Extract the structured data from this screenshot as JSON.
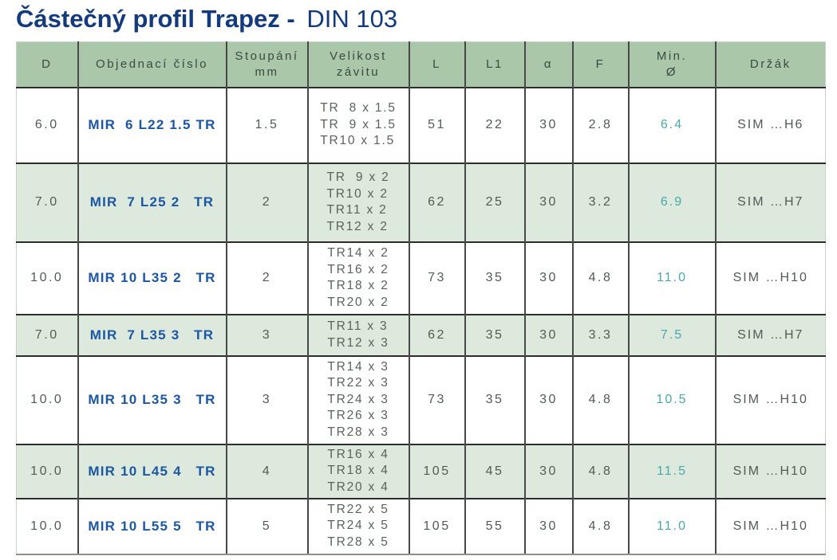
{
  "page": {
    "title_bold": "Částečný profil Trapez -",
    "title_light": "DIN 103"
  },
  "colors": {
    "title_navy": "#133a7d",
    "header_green": "#aac7aa",
    "shaded_row_green": "#dde9dd",
    "order_number_blue": "#1b57a4",
    "min_diameter_teal": "#49a8ad",
    "cell_text_gray": "#525b55",
    "grid_line_dark": "#2d2d2d"
  },
  "table": {
    "columns": [
      {
        "key": "d",
        "label": "D"
      },
      {
        "key": "order",
        "label": "Objednací číslo"
      },
      {
        "key": "pitch",
        "label": "Stoupání\nmm"
      },
      {
        "key": "thread",
        "label": "Velikost\nzávitu"
      },
      {
        "key": "l",
        "label": "L"
      },
      {
        "key": "l1",
        "label": "L1"
      },
      {
        "key": "alpha",
        "label": "α"
      },
      {
        "key": "f",
        "label": "F"
      },
      {
        "key": "min_dia",
        "label": "Min.\nØ"
      },
      {
        "key": "holder",
        "label": "Držák"
      }
    ],
    "rows": [
      {
        "d": "6.0",
        "order": "MIR  6 L22 1.5 TR",
        "pitch": "1.5",
        "thread": [
          "TR  8 x 1.5",
          "TR  9 x 1.5",
          "TR10 x 1.5"
        ],
        "l": "51",
        "l1": "22",
        "alpha": "30",
        "f": "2.8",
        "min_dia": "6.4",
        "holder": "SIM …H6",
        "shaded": false
      },
      {
        "d": "7.0",
        "order": "MIR  7 L25 2   TR",
        "pitch": "2",
        "thread": [
          "TR  9 x 2",
          "TR10 x 2",
          "TR11 x 2",
          "TR12 x 2"
        ],
        "l": "62",
        "l1": "25",
        "alpha": "30",
        "f": "3.2",
        "min_dia": "6.9",
        "holder": "SIM …H7",
        "shaded": true
      },
      {
        "d": "10.0",
        "order": "MIR 10 L35 2   TR",
        "pitch": "2",
        "thread": [
          "TR14 x 2",
          "TR16 x 2",
          "TR18 x 2",
          "TR20 x 2"
        ],
        "l": "73",
        "l1": "35",
        "alpha": "30",
        "f": "4.8",
        "min_dia": "11.0",
        "holder": "SIM …H10",
        "shaded": false
      },
      {
        "d": "7.0",
        "order": "MIR  7 L35 3   TR",
        "pitch": "3",
        "thread": [
          "TR11 x 3",
          "TR12 x 3"
        ],
        "l": "62",
        "l1": "35",
        "alpha": "30",
        "f": "3.3",
        "min_dia": "7.5",
        "holder": "SIM …H7",
        "shaded": true
      },
      {
        "d": "10.0",
        "order": "MIR 10 L35 3   TR",
        "pitch": "3",
        "thread": [
          "TR14 x 3",
          "TR22 x 3",
          "TR24 x 3",
          "TR26 x 3",
          "TR28 x 3"
        ],
        "l": "73",
        "l1": "35",
        "alpha": "30",
        "f": "4.8",
        "min_dia": "10.5",
        "holder": "SIM …H10",
        "shaded": false
      },
      {
        "d": "10.0",
        "order": "MIR 10 L45 4   TR",
        "pitch": "4",
        "thread": [
          "TR16 x 4",
          "TR18 x 4",
          "TR20 x 4"
        ],
        "l": "105",
        "l1": "45",
        "alpha": "30",
        "f": "4.8",
        "min_dia": "11.5",
        "holder": "SIM …H10",
        "shaded": true
      },
      {
        "d": "10.0",
        "order": "MIR 10 L55 5   TR",
        "pitch": "5",
        "thread": [
          "TR22 x 5",
          "TR24 x 5",
          "TR28 x 5"
        ],
        "l": "105",
        "l1": "55",
        "alpha": "30",
        "f": "4.8",
        "min_dia": "11.0",
        "holder": "SIM …H10",
        "shaded": false
      }
    ]
  }
}
